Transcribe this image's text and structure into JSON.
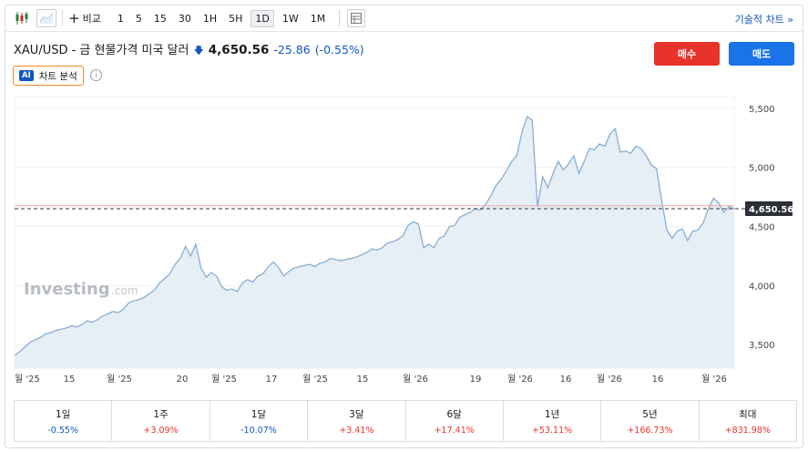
{
  "toolbar": {
    "compare_label": "비교",
    "intervals": [
      "1",
      "5",
      "15",
      "30",
      "1H",
      "5H",
      "1D",
      "1W",
      "1M"
    ],
    "active_interval": "1D",
    "technical_chart_label": "기술적 차트 »"
  },
  "header": {
    "symbol_name": "XAU/USD - 금 현물가격 미국 달러",
    "price": "4,650.56",
    "change": "-25.86",
    "change_pct": "(-0.55%)",
    "buy_label": "매수",
    "sell_label": "매도",
    "ai_badge": "AI",
    "ai_label": "차트 분석",
    "info_icon": "i"
  },
  "colors": {
    "up": "#e8332a",
    "down": "#1256c4",
    "line": "#7fa9d1",
    "area": "#e6eef6"
  },
  "watermark": "Investing",
  "watermark_suffix": ".com",
  "chart_data": {
    "type": "area",
    "y_ticks": [
      "5,500",
      "5,000",
      "4,500",
      "4,000",
      "3,500"
    ],
    "x_ticks": [
      "월 '25",
      "15",
      "월 '25",
      "20",
      "월 '25",
      "17",
      "월 '25",
      "15",
      "월 '26",
      "19",
      "월 '26",
      "16",
      "월 '26",
      "16",
      "월 '26"
    ],
    "ylim": [
      3300,
      5600
    ],
    "last_price_label": "4,650.56",
    "last_price": 4650.56,
    "reference_price": 4676,
    "values": [
      3410,
      3440,
      3480,
      3520,
      3540,
      3560,
      3590,
      3600,
      3620,
      3630,
      3640,
      3660,
      3650,
      3670,
      3700,
      3690,
      3710,
      3740,
      3760,
      3780,
      3770,
      3800,
      3850,
      3870,
      3880,
      3900,
      3930,
      3960,
      4020,
      4060,
      4100,
      4180,
      4230,
      4330,
      4250,
      4350,
      4150,
      4070,
      4110,
      4080,
      3990,
      3960,
      3970,
      3950,
      4020,
      4050,
      4030,
      4080,
      4100,
      4160,
      4200,
      4150,
      4080,
      4120,
      4150,
      4160,
      4170,
      4180,
      4160,
      4190,
      4200,
      4230,
      4220,
      4210,
      4220,
      4230,
      4240,
      4260,
      4280,
      4310,
      4300,
      4320,
      4360,
      4370,
      4390,
      4420,
      4510,
      4540,
      4520,
      4320,
      4350,
      4320,
      4400,
      4420,
      4500,
      4510,
      4580,
      4600,
      4620,
      4650,
      4640,
      4690,
      4760,
      4850,
      4900,
      4970,
      5050,
      5100,
      5300,
      5430,
      5400,
      4670,
      4920,
      4830,
      4950,
      5050,
      4980,
      5030,
      5100,
      4950,
      5050,
      5160,
      5150,
      5200,
      5180,
      5280,
      5330,
      5130,
      5140,
      5120,
      5180,
      5160,
      5100,
      5020,
      4990,
      4720,
      4470,
      4400,
      4460,
      4480,
      4380,
      4460,
      4470,
      4530,
      4650,
      4740,
      4700,
      4620,
      4670,
      4650
    ]
  },
  "performance": [
    {
      "label": "1일",
      "value": "-0.55%",
      "dir": "neg"
    },
    {
      "label": "1주",
      "value": "+3.09%",
      "dir": "pos"
    },
    {
      "label": "1달",
      "value": "-10.07%",
      "dir": "neg"
    },
    {
      "label": "3달",
      "value": "+3.41%",
      "dir": "pos"
    },
    {
      "label": "6달",
      "value": "+17.41%",
      "dir": "pos"
    },
    {
      "label": "1년",
      "value": "+53.11%",
      "dir": "pos"
    },
    {
      "label": "5년",
      "value": "+166.73%",
      "dir": "pos"
    },
    {
      "label": "최대",
      "value": "+831.98%",
      "dir": "pos"
    }
  ]
}
